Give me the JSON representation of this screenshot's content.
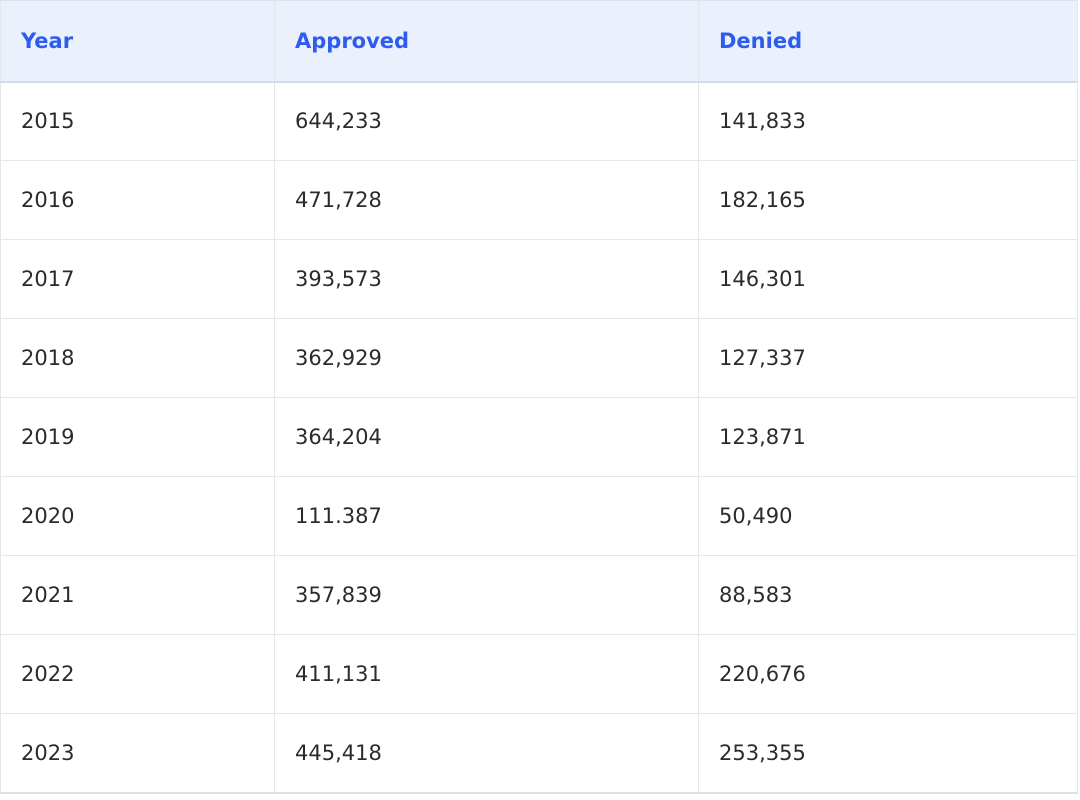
{
  "table": {
    "headers": [
      "Year",
      "Approved",
      "Denied"
    ],
    "rows": [
      [
        "2015",
        "644,233",
        "141,833"
      ],
      [
        "2016",
        "471,728",
        "182,165"
      ],
      [
        "2017",
        "393,573",
        "146,301"
      ],
      [
        "2018",
        "362,929",
        "127,337"
      ],
      [
        "2019",
        "364,204",
        "123,871"
      ],
      [
        "2020",
        "111.387",
        "50,490"
      ],
      [
        "2021",
        "357,839",
        "88,583"
      ],
      [
        "2022",
        "411,131",
        "220,676"
      ],
      [
        "2023",
        "445,418",
        "253,355"
      ]
    ]
  },
  "colors": {
    "header_background": "#eaf0fc",
    "header_text": "#2f5cf0",
    "body_text": "#2b2b2b",
    "grid_line": "#e3e6ea"
  }
}
